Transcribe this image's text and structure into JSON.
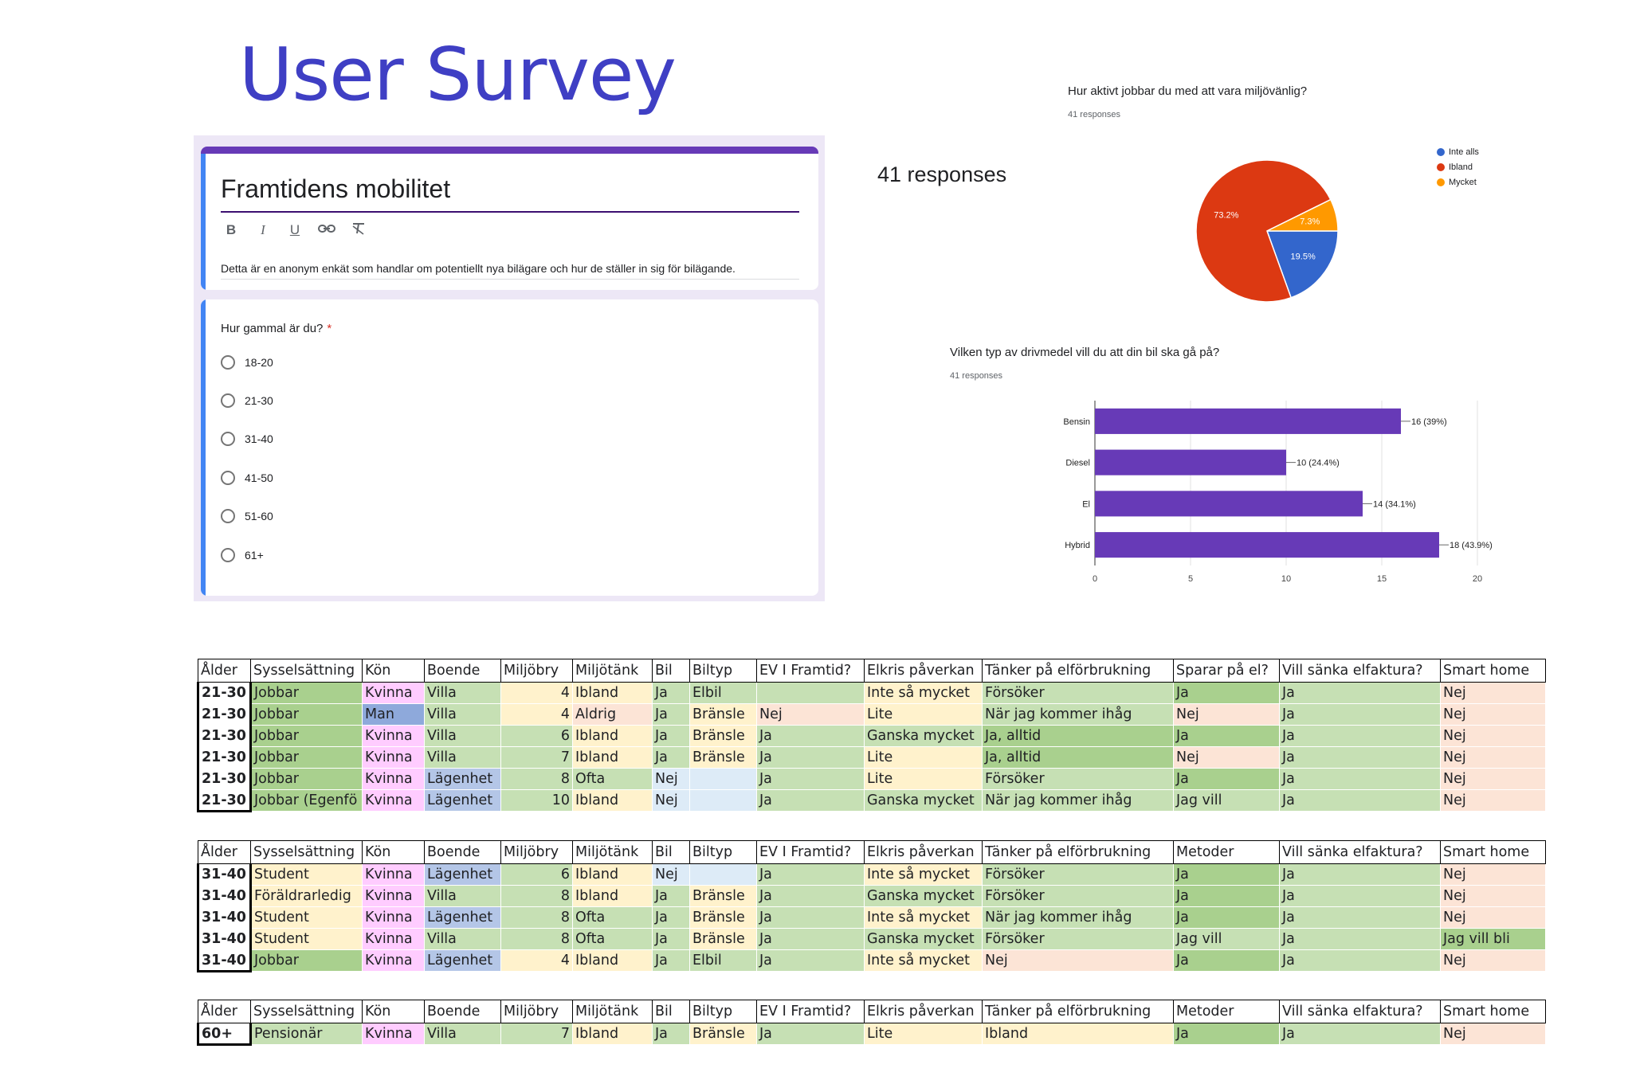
{
  "page_title": "User Survey",
  "form": {
    "title": "Framtidens mobilitet",
    "toolbar": {
      "bold": "B",
      "italic": "I",
      "underline": "U",
      "link": "⊖",
      "clear": "✗"
    },
    "description": "Detta är en anonym enkät som handlar om potentiellt nya bilägare och hur de ställer in sig för bilägande.",
    "question": "Hur gammal är du?",
    "required_mark": "*",
    "options": [
      "18-20",
      "21-30",
      "31-40",
      "41-50",
      "51-60",
      "61+"
    ]
  },
  "responses_label": "41 responses",
  "colors": {
    "accent": "#673ab7",
    "blue": "#3366cc",
    "red": "#dc3912",
    "orange": "#ff9900",
    "bar": "#673ab7"
  },
  "pie": {
    "question": "Hur aktivt jobbar du med att vara miljövänlig?",
    "responses": "41 responses",
    "chart_data": {
      "type": "pie",
      "labels": [
        "Inte alls",
        "Ibland",
        "Mycket"
      ],
      "values": [
        19.5,
        73.2,
        7.3
      ],
      "value_labels": [
        "19.5%",
        "73.2%",
        "7.3%"
      ],
      "colors": [
        "#3366cc",
        "#dc3912",
        "#ff9900"
      ],
      "legend": "right"
    }
  },
  "bar": {
    "question": "Vilken typ av drivmedel vill du att din bil ska gå på?",
    "responses": "41 responses",
    "chart_data": {
      "type": "bar",
      "orientation": "horizontal",
      "categories": [
        "Bensin",
        "Diesel",
        "El",
        "Hybrid"
      ],
      "values": [
        16,
        10,
        14,
        18
      ],
      "value_labels": [
        "16 (39%)",
        "10 (24.4%)",
        "14 (34.1%)",
        "18 (43.9%)"
      ],
      "xlim": [
        0,
        20
      ],
      "xticks": [
        "0",
        "5",
        "10",
        "15",
        "20"
      ],
      "grid": true
    }
  },
  "tables": [
    {
      "headers": [
        "Ålder",
        "Sysselsättning",
        "Kön",
        "Boende",
        "Miljöbry",
        "Miljötänk",
        "Bil",
        "Biltyp",
        "EV I Framtid?",
        "Elkris påverkan",
        "Tänker på elförbrukning",
        "Sparar på el?",
        "Vill sänka elfaktura?",
        "Smart home"
      ],
      "rows": [
        [
          "21-30",
          "Jobbar",
          "Kvinna",
          "Villa",
          "4",
          "Ibland",
          "Ja",
          "Elbil",
          "",
          "Inte så mycket",
          "Försöker",
          "Ja",
          "Ja",
          "Nej"
        ],
        [
          "21-30",
          "Jobbar",
          "Man",
          "Villa",
          "4",
          "Aldrig",
          "Ja",
          "Bränsle",
          "Nej",
          "Lite",
          "När jag kommer ihåg",
          "Nej",
          "Ja",
          "Nej"
        ],
        [
          "21-30",
          "Jobbar",
          "Kvinna",
          "Villa",
          "6",
          "Ibland",
          "Ja",
          "Bränsle",
          "Ja",
          "Ganska mycket",
          "Ja, alltid",
          "Ja",
          "Ja",
          "Nej"
        ],
        [
          "21-30",
          "Jobbar",
          "Kvinna",
          "Villa",
          "7",
          "Ibland",
          "Ja",
          "Bränsle",
          "Ja",
          "Lite",
          "Ja, alltid",
          "Nej",
          "Ja",
          "Nej"
        ],
        [
          "21-30",
          "Jobbar",
          "Kvinna",
          "Lägenhet",
          "8",
          "Ofta",
          "Nej",
          "",
          "Ja",
          "Lite",
          "Försöker",
          "Ja",
          "Ja",
          "Nej"
        ],
        [
          "21-30",
          "Jobbar (Egenfö",
          "Kvinna",
          "Lägenhet",
          "10",
          "Ibland",
          "Nej",
          "",
          "Ja",
          "Ganska mycket",
          "När jag kommer ihåg",
          "Jag vill",
          "Ja",
          "Nej"
        ]
      ],
      "colors": [
        [
          "",
          "#a9d08e",
          "#ffccff",
          "#c6e0b4",
          "#fff2cc",
          "#fff2cc",
          "#c6e0b4",
          "#c6e0b4",
          "#c6e0b4",
          "#fff2cc",
          "#c6e0b4",
          "#a9d08e",
          "#c6e0b4",
          "#fce4d6"
        ],
        [
          "",
          "#a9d08e",
          "#8ea9db",
          "#c6e0b4",
          "#fff2cc",
          "#fce4d6",
          "#c6e0b4",
          "#fff2cc",
          "#fce4d6",
          "#fff2cc",
          "#c6e0b4",
          "#fce4d6",
          "#c6e0b4",
          "#fce4d6"
        ],
        [
          "",
          "#a9d08e",
          "#ffccff",
          "#c6e0b4",
          "#c6e0b4",
          "#fff2cc",
          "#c6e0b4",
          "#fff2cc",
          "#c6e0b4",
          "#c6e0b4",
          "#a9d08e",
          "#a9d08e",
          "#c6e0b4",
          "#fce4d6"
        ],
        [
          "",
          "#a9d08e",
          "#ffccff",
          "#c6e0b4",
          "#c6e0b4",
          "#fff2cc",
          "#c6e0b4",
          "#fff2cc",
          "#c6e0b4",
          "#fff2cc",
          "#a9d08e",
          "#fce4d6",
          "#c6e0b4",
          "#fce4d6"
        ],
        [
          "",
          "#a9d08e",
          "#ffccff",
          "#b4c6e7",
          "#c6e0b4",
          "#c6e0b4",
          "#ddebf7",
          "#ddebf7",
          "#c6e0b4",
          "#fff2cc",
          "#c6e0b4",
          "#a9d08e",
          "#c6e0b4",
          "#fce4d6"
        ],
        [
          "",
          "#a9d08e",
          "#ffccff",
          "#b4c6e7",
          "#c6e0b4",
          "#fff2cc",
          "#ddebf7",
          "#ddebf7",
          "#c6e0b4",
          "#c6e0b4",
          "#c6e0b4",
          "#c6e0b4",
          "#c6e0b4",
          "#fce4d6"
        ]
      ]
    },
    {
      "headers": [
        "Ålder",
        "Sysselsättning",
        "Kön",
        "Boende",
        "Miljöbry",
        "Miljötänk",
        "Bil",
        "Biltyp",
        "EV I Framtid?",
        "Elkris påverkan",
        "Tänker på elförbrukning",
        "Metoder",
        "Vill sänka elfaktura?",
        "Smart home"
      ],
      "rows": [
        [
          "31-40",
          "Student",
          "Kvinna",
          "Lägenhet",
          "6",
          "Ibland",
          "Nej",
          "",
          "Ja",
          "Inte så mycket",
          "Försöker",
          "Ja",
          "Ja",
          "Nej"
        ],
        [
          "31-40",
          "Föräldrarledig",
          "Kvinna",
          "Villa",
          "8",
          "Ibland",
          "Ja",
          "Bränsle",
          "Ja",
          "Ganska mycket",
          "Försöker",
          "Ja",
          "Ja",
          "Nej"
        ],
        [
          "31-40",
          "Student",
          "Kvinna",
          "Lägenhet",
          "8",
          "Ofta",
          "Ja",
          "Bränsle",
          "Ja",
          "Inte så mycket",
          "När jag kommer ihåg",
          "Ja",
          "Ja",
          "Nej"
        ],
        [
          "31-40",
          "Student",
          "Kvinna",
          "Villa",
          "8",
          "Ofta",
          "Ja",
          "Bränsle",
          "Ja",
          "Ganska mycket",
          "Försöker",
          "Jag vill",
          "Ja",
          "Jag vill bli"
        ],
        [
          "31-40",
          "Jobbar",
          "Kvinna",
          "Lägenhet",
          "4",
          "Ibland",
          "Ja",
          "Elbil",
          "Ja",
          "Inte så mycket",
          "Nej",
          "Ja",
          "Ja",
          "Nej"
        ]
      ],
      "colors": [
        [
          "",
          "#fff2cc",
          "#ffccff",
          "#b4c6e7",
          "#c6e0b4",
          "#fff2cc",
          "#ddebf7",
          "#ddebf7",
          "#c6e0b4",
          "#fff2cc",
          "#c6e0b4",
          "#a9d08e",
          "#c6e0b4",
          "#fce4d6"
        ],
        [
          "",
          "#fff2cc",
          "#ffccff",
          "#c6e0b4",
          "#c6e0b4",
          "#fff2cc",
          "#c6e0b4",
          "#fff2cc",
          "#c6e0b4",
          "#c6e0b4",
          "#c6e0b4",
          "#a9d08e",
          "#c6e0b4",
          "#fce4d6"
        ],
        [
          "",
          "#fff2cc",
          "#ffccff",
          "#b4c6e7",
          "#c6e0b4",
          "#c6e0b4",
          "#c6e0b4",
          "#fff2cc",
          "#c6e0b4",
          "#fff2cc",
          "#c6e0b4",
          "#a9d08e",
          "#c6e0b4",
          "#fce4d6"
        ],
        [
          "",
          "#fff2cc",
          "#ffccff",
          "#c6e0b4",
          "#c6e0b4",
          "#c6e0b4",
          "#c6e0b4",
          "#fff2cc",
          "#c6e0b4",
          "#c6e0b4",
          "#c6e0b4",
          "#c6e0b4",
          "#c6e0b4",
          "#a9d08e"
        ],
        [
          "",
          "#a9d08e",
          "#ffccff",
          "#b4c6e7",
          "#fff2cc",
          "#fff2cc",
          "#c6e0b4",
          "#c6e0b4",
          "#c6e0b4",
          "#fff2cc",
          "#fce4d6",
          "#a9d08e",
          "#c6e0b4",
          "#fce4d6"
        ]
      ]
    },
    {
      "headers": [
        "Ålder",
        "Sysselsättning",
        "Kön",
        "Boende",
        "Miljöbry",
        "Miljötänk",
        "Bil",
        "Biltyp",
        "EV I Framtid?",
        "Elkris påverkan",
        "Tänker på elförbrukning",
        "Metoder",
        "Vill sänka elfaktura?",
        "Smart home"
      ],
      "rows": [
        [
          "60+",
          "Pensionär",
          "Kvinna",
          "Villa",
          "7",
          "Ibland",
          "Ja",
          "Bränsle",
          "Ja",
          "Lite",
          "Ibland",
          "Ja",
          "Ja",
          "Nej"
        ]
      ],
      "colors": [
        [
          "",
          "#c6e0b4",
          "#ffccff",
          "#c6e0b4",
          "#c6e0b4",
          "#fff2cc",
          "#c6e0b4",
          "#fff2cc",
          "#c6e0b4",
          "#fff2cc",
          "#fff2cc",
          "#a9d08e",
          "#c6e0b4",
          "#fce4d6"
        ]
      ]
    }
  ]
}
